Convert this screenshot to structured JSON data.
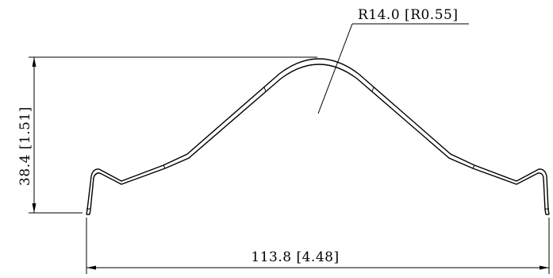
{
  "dimensions": {
    "radius_label": "R14.0 [R0.55]",
    "height_label": "38.4 [1.51]",
    "width_label": "113.8 [4.48]"
  },
  "colors": {
    "line": "#000000",
    "background": "#ffffff"
  }
}
